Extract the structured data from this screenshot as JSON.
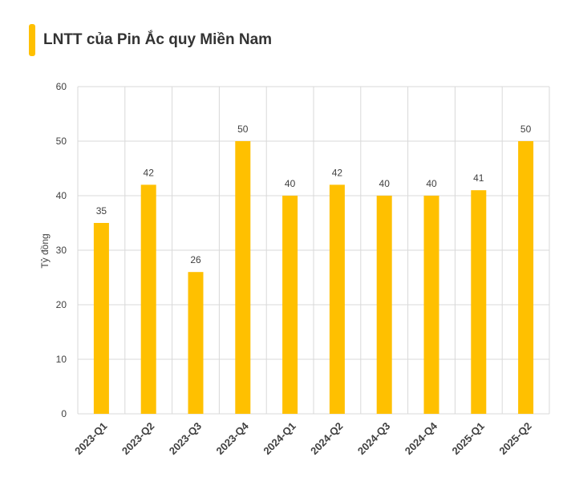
{
  "colors": {
    "accent": "#FFC000",
    "bar": "#FFC000",
    "grid": "#D9D9D9",
    "text": "#404040"
  },
  "chart_data": {
    "type": "bar",
    "title": "LNTT của Pin Ắc quy Miền Nam",
    "xlabel": "",
    "ylabel": "Tỷ đồng",
    "ylim": [
      0,
      60
    ],
    "yticks": [
      0,
      10,
      20,
      30,
      40,
      50,
      60
    ],
    "grid": true,
    "legend": "none",
    "categories": [
      "2023-Q1",
      "2023-Q2",
      "2023-Q3",
      "2023-Q4",
      "2024-Q1",
      "2024-Q2",
      "2024-Q3",
      "2024-Q4",
      "2025-Q1",
      "2025-Q2"
    ],
    "values": [
      35,
      42,
      26,
      50,
      40,
      42,
      40,
      40,
      41,
      50
    ]
  }
}
